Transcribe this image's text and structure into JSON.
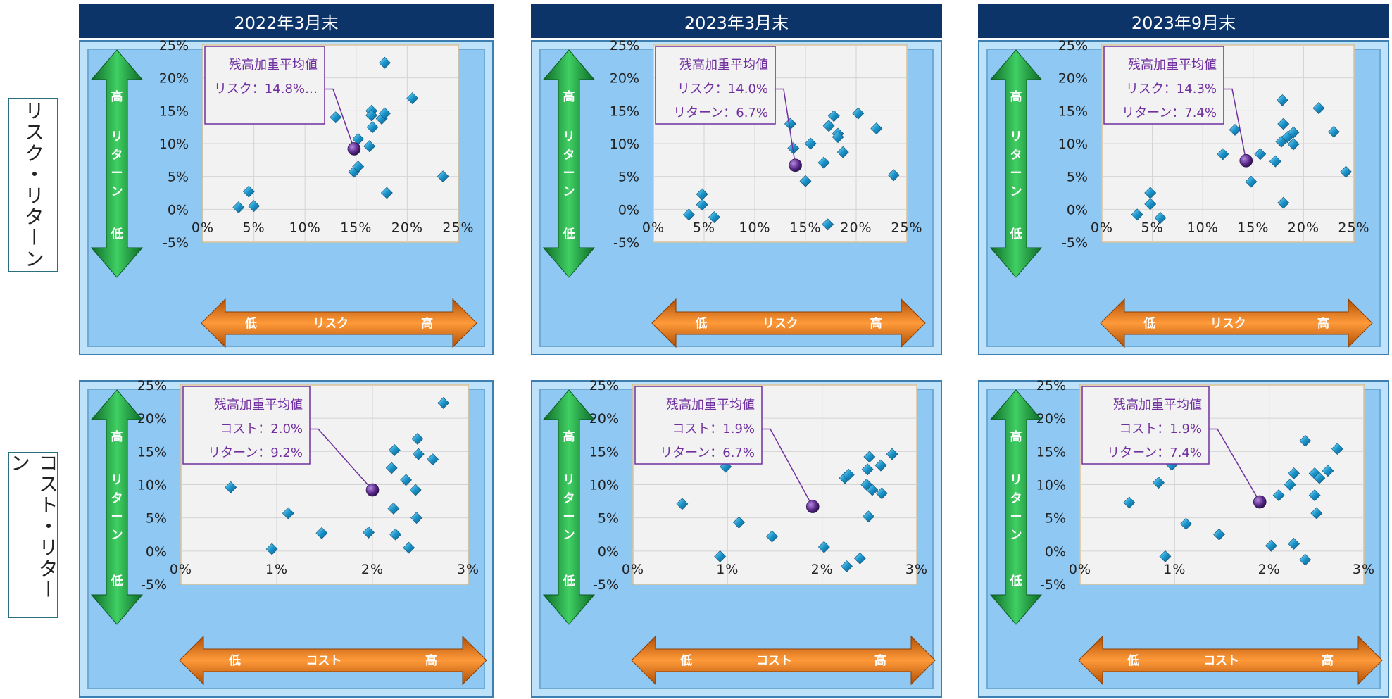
{
  "rows": [
    {
      "label": "リスク・リターン"
    },
    {
      "label": "コスト・リターン"
    }
  ],
  "columns": [
    {
      "title": "2022年3月末"
    },
    {
      "title": "2023年3月末"
    },
    {
      "title": "2023年9月末"
    }
  ],
  "arrows": {
    "vertical": {
      "top": "高",
      "middle": "リターン",
      "bottom": "低",
      "color": "#1e9a3e"
    },
    "horizontal_risk": {
      "left": "低",
      "middle": "リスク",
      "right": "高",
      "color": "#f07a13"
    },
    "horizontal_cost": {
      "left": "低",
      "middle": "コスト",
      "right": "高",
      "color": "#f07a13"
    }
  },
  "colors": {
    "marker": "#1a93c9",
    "average_marker": "#5a2a8a",
    "callout": "#7030a0",
    "plot_border": "#e8a020",
    "header_bg": "#0d3468",
    "panel_bg": "#8fc8f2"
  },
  "chart_data": [
    {
      "id": "risk-2022",
      "type": "scatter",
      "xticks": [
        "0%",
        "5%",
        "10%",
        "15%",
        "20%",
        "25%"
      ],
      "yticks": [
        "25%",
        "20%",
        "15%",
        "10%",
        "5%",
        "0%",
        "-5%"
      ],
      "xlim": [
        0,
        25
      ],
      "ylim": [
        -5,
        25
      ],
      "points": [
        [
          3.5,
          0.3
        ],
        [
          4.5,
          2.7
        ],
        [
          5.0,
          0.5
        ],
        [
          13.0,
          14.0
        ],
        [
          14.8,
          5.7
        ],
        [
          15.2,
          6.5
        ],
        [
          15.2,
          10.7
        ],
        [
          16.3,
          9.6
        ],
        [
          16.5,
          15.0
        ],
        [
          16.5,
          14.3
        ],
        [
          16.6,
          12.5
        ],
        [
          17.5,
          13.8
        ],
        [
          17.8,
          22.3
        ],
        [
          17.8,
          14.6
        ],
        [
          18.0,
          2.5
        ],
        [
          20.5,
          16.9
        ],
        [
          23.5,
          5.0
        ]
      ],
      "average": {
        "x": 14.8,
        "y": 9.2
      },
      "callout": {
        "title": "残高加重平均値",
        "line1": "リスク：14.8%…",
        "line2": ""
      }
    },
    {
      "id": "risk-2023-03",
      "type": "scatter",
      "xticks": [
        "0%",
        "5%",
        "10%",
        "15%",
        "20%",
        "25%"
      ],
      "yticks": [
        "25%",
        "20%",
        "15%",
        "10%",
        "5%",
        "0%",
        "-5%"
      ],
      "xlim": [
        0,
        25
      ],
      "ylim": [
        -5,
        25
      ],
      "points": [
        [
          3.5,
          -0.8
        ],
        [
          4.8,
          2.3
        ],
        [
          4.8,
          0.7
        ],
        [
          6.0,
          -1.2
        ],
        [
          13.5,
          13.0
        ],
        [
          13.8,
          9.3
        ],
        [
          15.0,
          4.3
        ],
        [
          15.5,
          10.0
        ],
        [
          16.8,
          7.1
        ],
        [
          17.3,
          12.7
        ],
        [
          17.8,
          14.2
        ],
        [
          18.2,
          11.5
        ],
        [
          18.2,
          11.0
        ],
        [
          18.7,
          8.7
        ],
        [
          20.2,
          14.6
        ],
        [
          17.2,
          -2.3
        ],
        [
          22.0,
          12.3
        ],
        [
          23.7,
          5.2
        ]
      ],
      "average": {
        "x": 14.0,
        "y": 6.7
      },
      "callout": {
        "title": "残高加重平均値",
        "line1": "リスク：14.0%",
        "line2": "リターン：6.7%"
      }
    },
    {
      "id": "risk-2023-09",
      "type": "scatter",
      "xticks": [
        "0%",
        "5%",
        "10%",
        "15%",
        "20%",
        "25%"
      ],
      "yticks": [
        "25%",
        "20%",
        "15%",
        "10%",
        "5%",
        "0%",
        "-5%"
      ],
      "xlim": [
        0,
        25
      ],
      "ylim": [
        -5,
        25
      ],
      "points": [
        [
          3.5,
          -0.8
        ],
        [
          4.8,
          2.5
        ],
        [
          4.8,
          0.8
        ],
        [
          5.8,
          -1.3
        ],
        [
          12.0,
          8.4
        ],
        [
          13.2,
          12.1
        ],
        [
          14.8,
          4.2
        ],
        [
          15.7,
          8.4
        ],
        [
          17.2,
          7.3
        ],
        [
          17.8,
          10.3
        ],
        [
          17.9,
          16.6
        ],
        [
          18.0,
          13.0
        ],
        [
          18.0,
          1.0
        ],
        [
          18.4,
          11.0
        ],
        [
          19.0,
          11.7
        ],
        [
          19.0,
          9.9
        ],
        [
          21.5,
          15.4
        ],
        [
          23.0,
          11.8
        ],
        [
          24.2,
          5.7
        ]
      ],
      "average": {
        "x": 14.3,
        "y": 7.4
      },
      "callout": {
        "title": "残高加重平均値",
        "line1": "リスク：14.3%",
        "line2": "リターン：7.4%"
      }
    },
    {
      "id": "cost-2022",
      "type": "scatter",
      "xticks": [
        "0%",
        "1%",
        "2%",
        "3%"
      ],
      "yticks": [
        "25%",
        "20%",
        "15%",
        "10%",
        "5%",
        "0%",
        "-5%"
      ],
      "xlim": [
        0,
        3
      ],
      "ylim": [
        -5,
        25
      ],
      "points": [
        [
          0.52,
          9.6
        ],
        [
          0.95,
          0.3
        ],
        [
          0.99,
          14.6
        ],
        [
          1.12,
          5.7
        ],
        [
          1.47,
          2.7
        ],
        [
          1.96,
          2.8
        ],
        [
          2.2,
          12.5
        ],
        [
          2.22,
          6.4
        ],
        [
          2.23,
          15.2
        ],
        [
          2.24,
          2.5
        ],
        [
          2.35,
          10.7
        ],
        [
          2.38,
          0.5
        ],
        [
          2.45,
          9.2
        ],
        [
          2.46,
          5.0
        ],
        [
          2.47,
          16.9
        ],
        [
          2.48,
          14.6
        ],
        [
          2.63,
          13.8
        ],
        [
          2.74,
          22.3
        ]
      ],
      "average": {
        "x": 2.0,
        "y": 9.2
      },
      "callout": {
        "title": "残高加重平均値",
        "line1": "コスト：2.0%",
        "line2": "リターン：9.2%"
      }
    },
    {
      "id": "cost-2023-03",
      "type": "scatter",
      "xticks": [
        "0%",
        "1%",
        "2%",
        "3%"
      ],
      "yticks": [
        "25%",
        "20%",
        "15%",
        "10%",
        "5%",
        "0%",
        "-5%"
      ],
      "xlim": [
        0,
        3
      ],
      "ylim": [
        -5,
        25
      ],
      "points": [
        [
          0.52,
          7.1
        ],
        [
          0.92,
          -0.8
        ],
        [
          0.98,
          12.7
        ],
        [
          1.12,
          4.3
        ],
        [
          1.47,
          2.2
        ],
        [
          2.02,
          0.6
        ],
        [
          2.24,
          11.0
        ],
        [
          2.28,
          11.5
        ],
        [
          2.26,
          -2.3
        ],
        [
          2.4,
          -1.1
        ],
        [
          2.47,
          10.0
        ],
        [
          2.48,
          12.3
        ],
        [
          2.49,
          5.2
        ],
        [
          2.5,
          14.2
        ],
        [
          2.53,
          9.2
        ],
        [
          2.62,
          12.9
        ],
        [
          2.63,
          8.7
        ],
        [
          2.74,
          14.6
        ]
      ],
      "average": {
        "x": 1.9,
        "y": 6.7
      },
      "callout": {
        "title": "残高加重平均値",
        "line1": "コスト：1.9%",
        "line2": "リターン：6.7%"
      }
    },
    {
      "id": "cost-2023-09",
      "type": "scatter",
      "xticks": [
        "0%",
        "1%",
        "2%",
        "3%"
      ],
      "yticks": [
        "25%",
        "20%",
        "15%",
        "10%",
        "5%",
        "0%",
        "-5%"
      ],
      "xlim": [
        0,
        3
      ],
      "ylim": [
        -5,
        25
      ],
      "points": [
        [
          0.52,
          7.3
        ],
        [
          0.83,
          10.3
        ],
        [
          0.9,
          -0.8
        ],
        [
          0.97,
          13.0
        ],
        [
          1.12,
          4.1
        ],
        [
          1.47,
          2.5
        ],
        [
          2.02,
          0.8
        ],
        [
          2.1,
          8.4
        ],
        [
          2.22,
          10.0
        ],
        [
          2.26,
          11.7
        ],
        [
          2.26,
          1.1
        ],
        [
          2.38,
          16.6
        ],
        [
          2.38,
          -1.3
        ],
        [
          2.48,
          8.4
        ],
        [
          2.48,
          11.7
        ],
        [
          2.5,
          5.7
        ],
        [
          2.53,
          11.0
        ],
        [
          2.62,
          12.1
        ],
        [
          2.72,
          15.4
        ]
      ],
      "average": {
        "x": 1.9,
        "y": 7.4
      },
      "callout": {
        "title": "残高加重平均値",
        "line1": "コスト：1.9%",
        "line2": "リターン：7.4%"
      }
    }
  ]
}
